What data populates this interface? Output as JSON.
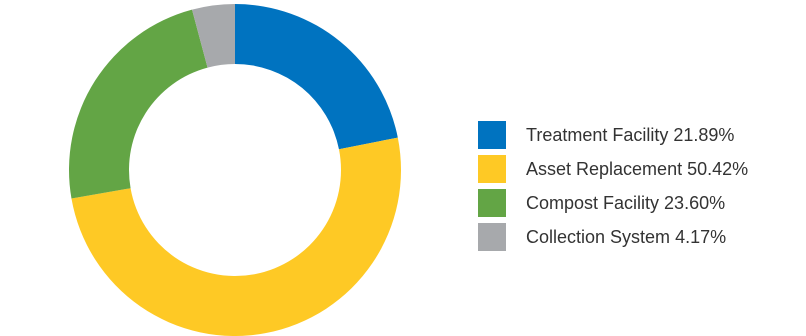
{
  "chart_data": {
    "type": "pie",
    "variant": "donut",
    "legend_position": "right",
    "slices": [
      {
        "label": "Treatment Facility",
        "value": 21.89,
        "value_label": "21.89%",
        "color": "#0073C0"
      },
      {
        "label": "Asset Replacement",
        "value": 50.42,
        "value_label": "50.42%",
        "color": "#FEC925"
      },
      {
        "label": "Compost Facility",
        "value": 23.6,
        "value_label": "23.60%",
        "color": "#63A545"
      },
      {
        "label": "Collection System",
        "value": 4.17,
        "value_label": "4.17%",
        "color": "#A7A9AC"
      }
    ]
  }
}
